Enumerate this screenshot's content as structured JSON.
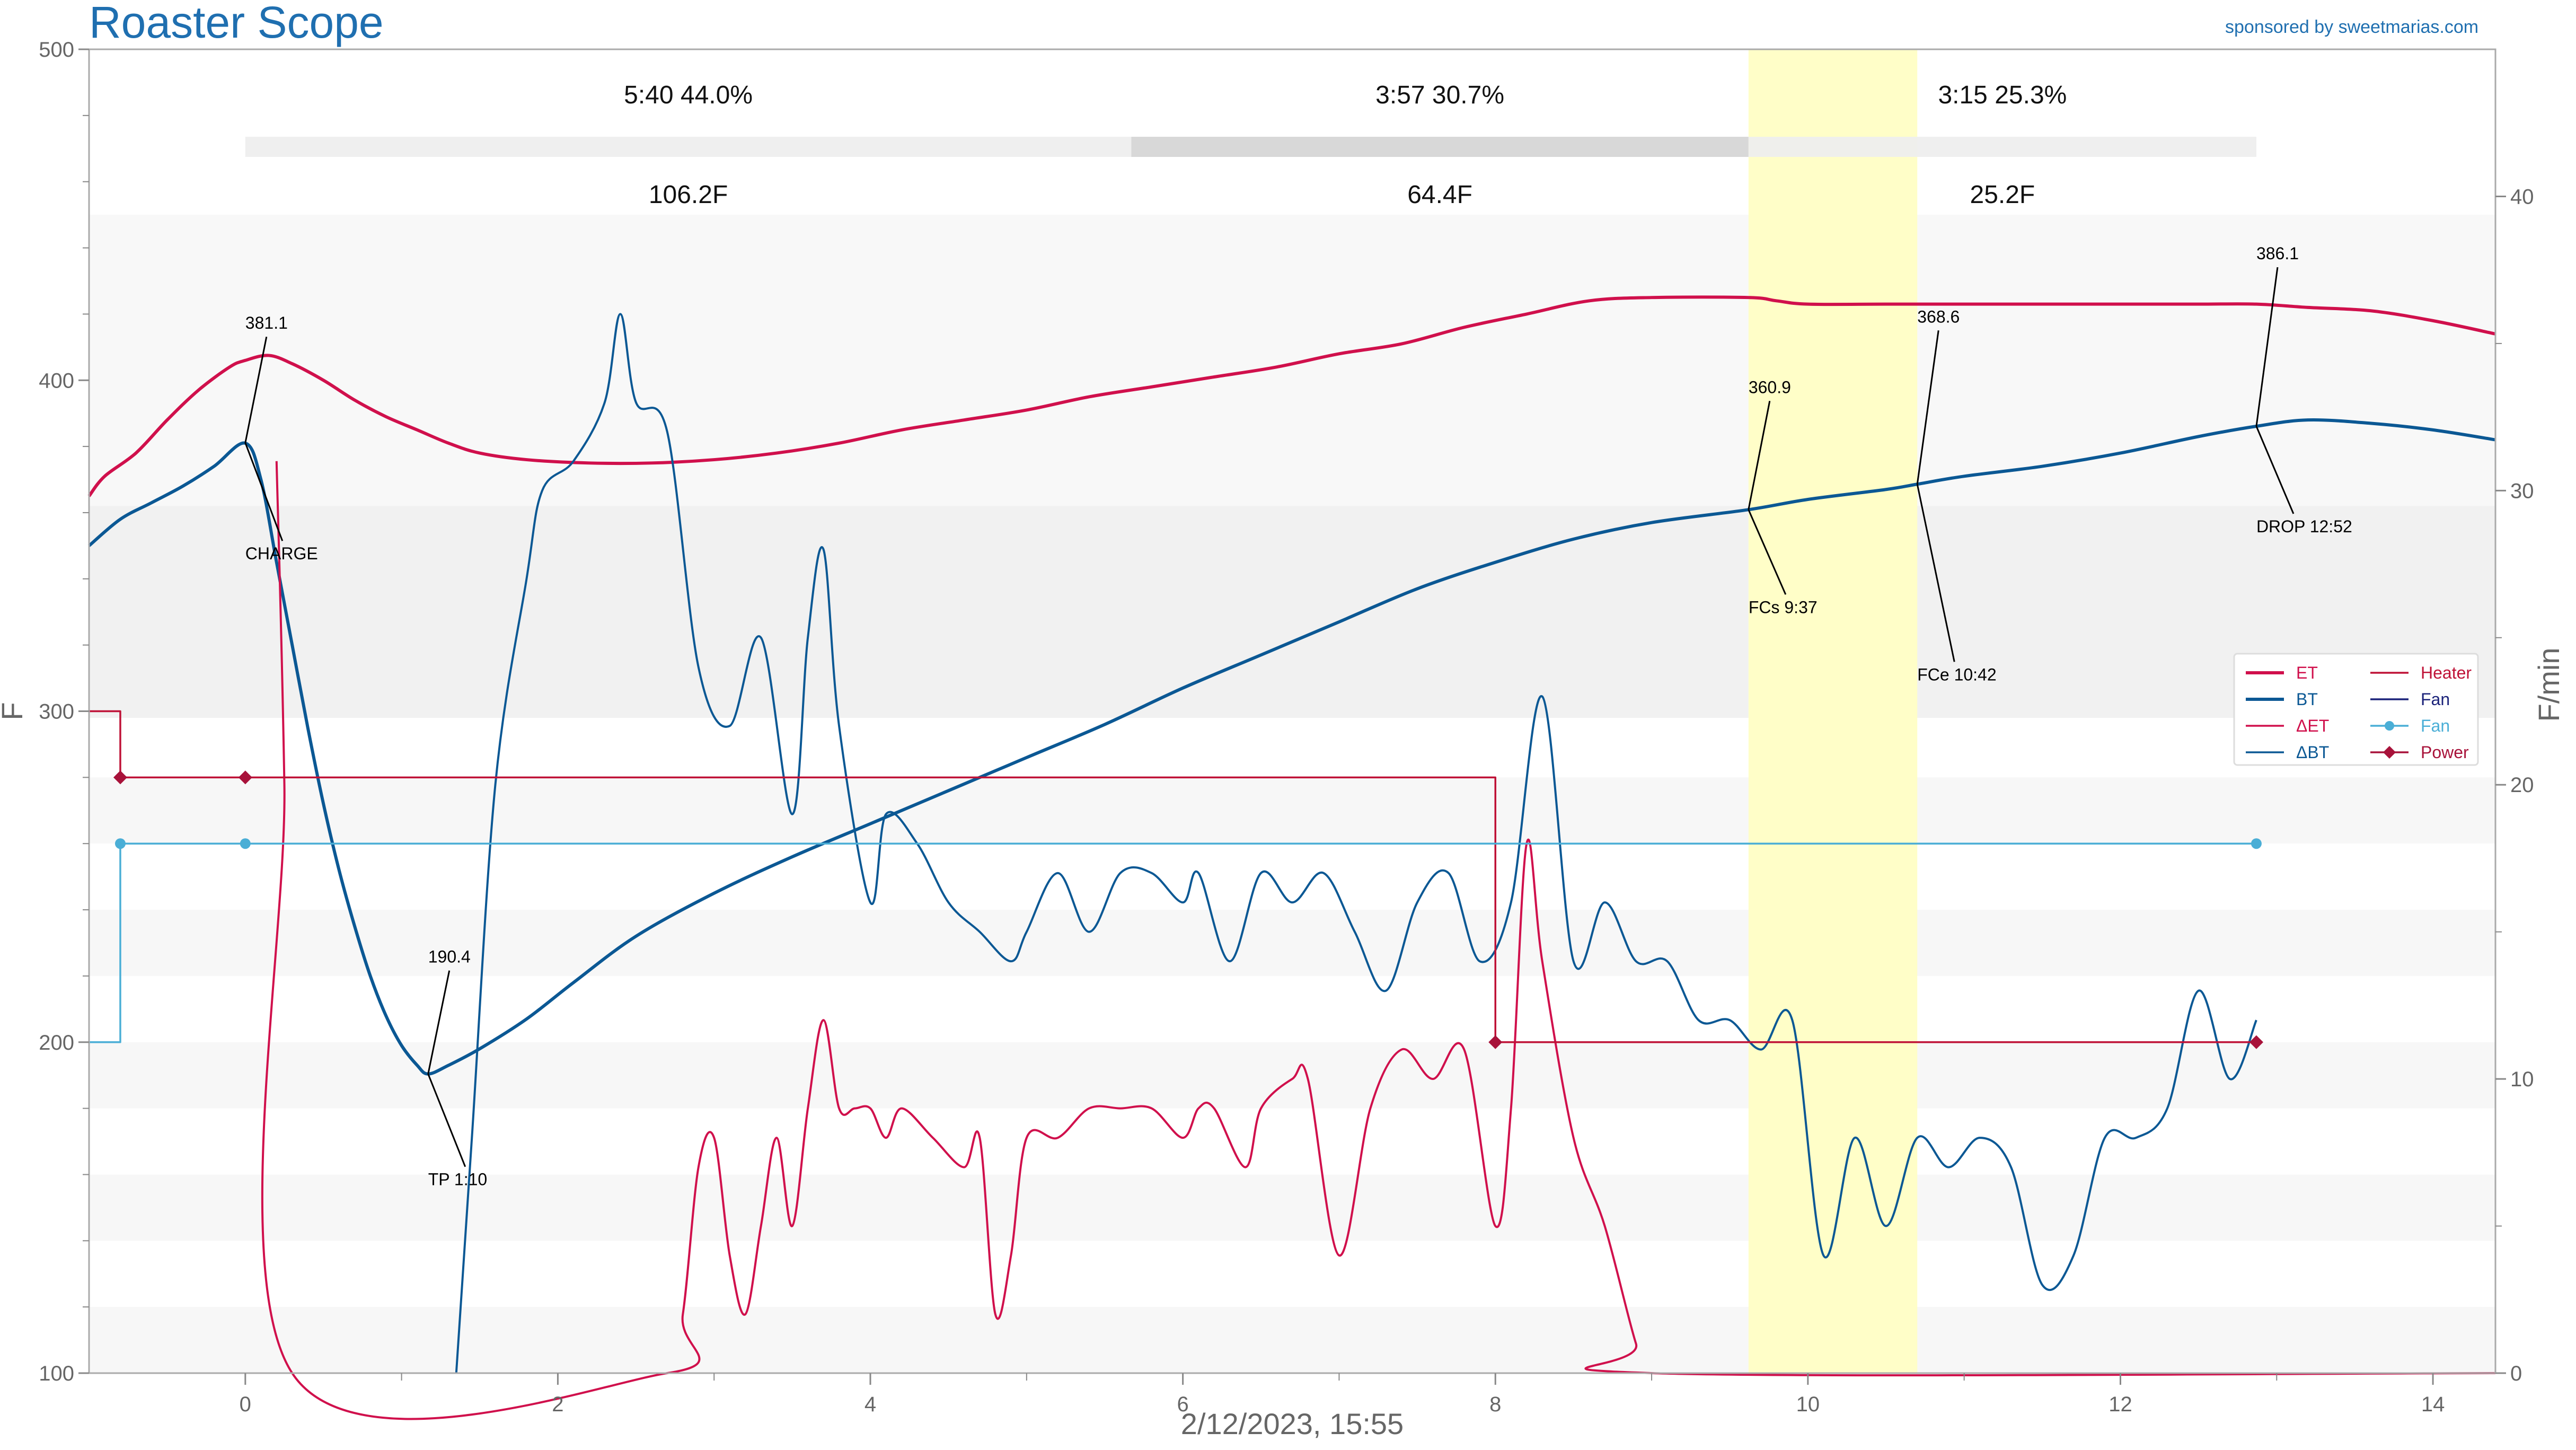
{
  "app": {
    "title": "Roaster Scope",
    "sponsor": "sponsored by sweetmarias.com"
  },
  "colors": {
    "et": "#d0104c",
    "bt": "#0b5894",
    "delta_et": "#d0104c",
    "delta_bt": "#0b5894",
    "heater": "#bf1237",
    "fan": "#4aaed6",
    "power": "#a8123a",
    "fc_band": "#fffec8"
  },
  "chart_data": {
    "type": "line",
    "xlabel": "2/12/2023, 15:55",
    "ylabel": "F",
    "ylabel_right": "F/min",
    "xlim": [
      -1.0,
      14.4
    ],
    "ylim": [
      100,
      500
    ],
    "ylim_right": [
      0,
      45
    ],
    "xticks": [
      0,
      2,
      4,
      6,
      8,
      10,
      12,
      14
    ],
    "yticks": [
      100,
      200,
      300,
      400,
      500
    ],
    "yticks_right": [
      0,
      10,
      20,
      30,
      40
    ],
    "first_crack_band": [
      9.62,
      10.7
    ],
    "phases": [
      {
        "time_pct": "5:40  44.0%",
        "delta": "106.2F",
        "start": 0.0,
        "end": 5.67
      },
      {
        "time_pct": "3:57  30.7%",
        "delta": "64.4F",
        "start": 5.67,
        "end": 9.62
      },
      {
        "time_pct": "3:15  25.3%",
        "delta": "25.2F",
        "start": 9.62,
        "end": 12.87
      }
    ],
    "annotations": [
      {
        "label": "CHARGE",
        "value": "381.1",
        "x": 0.0,
        "y": 381.1
      },
      {
        "label": "TP 1:10",
        "value": "190.4",
        "x": 1.17,
        "y": 190.4
      },
      {
        "label": "FCs 9:37",
        "value": "360.9",
        "x": 9.62,
        "y": 360.9
      },
      {
        "label": "FCe 10:42",
        "value": "368.6",
        "x": 10.7,
        "y": 368.6
      },
      {
        "label": "DROP 12:52",
        "value": "386.1",
        "x": 12.87,
        "y": 386.1
      }
    ],
    "legend": {
      "position": "right",
      "entries": [
        {
          "name": "ET",
          "key": "et",
          "style": "line-thick"
        },
        {
          "name": "BT",
          "key": "bt",
          "style": "line-thick"
        },
        {
          "name": "ΔET",
          "key": "delta_et",
          "style": "line"
        },
        {
          "name": "ΔBT",
          "key": "delta_bt",
          "style": "line"
        },
        {
          "name": "Heater",
          "key": "heater",
          "style": "line"
        },
        {
          "name": "Fan",
          "key": "fan_dark",
          "style": "line"
        },
        {
          "name": "Fan",
          "key": "fan",
          "style": "line-dot"
        },
        {
          "name": "Power",
          "key": "power",
          "style": "line-diamond"
        }
      ]
    },
    "series": [
      {
        "name": "ET",
        "axis": "left",
        "points": [
          [
            -1,
            365
          ],
          [
            -0.9,
            371
          ],
          [
            -0.7,
            378
          ],
          [
            -0.5,
            388
          ],
          [
            -0.3,
            397
          ],
          [
            -0.1,
            404
          ],
          [
            0,
            406
          ],
          [
            0.15,
            407.5
          ],
          [
            0.3,
            405
          ],
          [
            0.5,
            400
          ],
          [
            0.7,
            394
          ],
          [
            0.9,
            389
          ],
          [
            1.1,
            385
          ],
          [
            1.3,
            381
          ],
          [
            1.5,
            378
          ],
          [
            1.8,
            376
          ],
          [
            2.2,
            375
          ],
          [
            2.6,
            375
          ],
          [
            3.0,
            376
          ],
          [
            3.4,
            378
          ],
          [
            3.8,
            381
          ],
          [
            4.2,
            385
          ],
          [
            4.6,
            388
          ],
          [
            5.0,
            391
          ],
          [
            5.4,
            395
          ],
          [
            5.8,
            398
          ],
          [
            6.2,
            401
          ],
          [
            6.6,
            404
          ],
          [
            7.0,
            408
          ],
          [
            7.4,
            411
          ],
          [
            7.8,
            416
          ],
          [
            8.2,
            420
          ],
          [
            8.6,
            424
          ],
          [
            9.0,
            425
          ],
          [
            9.62,
            425
          ],
          [
            9.8,
            424
          ],
          [
            10.0,
            423
          ],
          [
            10.5,
            423
          ],
          [
            11.0,
            423
          ],
          [
            11.5,
            423
          ],
          [
            12.0,
            423
          ],
          [
            12.5,
            423
          ],
          [
            12.87,
            423
          ],
          [
            13.2,
            422
          ],
          [
            13.6,
            421
          ],
          [
            14.0,
            418
          ],
          [
            14.4,
            414
          ]
        ]
      },
      {
        "name": "BT",
        "axis": "left",
        "points": [
          [
            -1,
            350
          ],
          [
            -0.8,
            358
          ],
          [
            -0.6,
            363
          ],
          [
            -0.4,
            368
          ],
          [
            -0.2,
            374
          ],
          [
            0,
            381
          ],
          [
            0.1,
            370
          ],
          [
            0.2,
            345
          ],
          [
            0.3,
            320
          ],
          [
            0.4,
            295
          ],
          [
            0.5,
            272
          ],
          [
            0.6,
            252
          ],
          [
            0.7,
            235
          ],
          [
            0.8,
            220
          ],
          [
            0.9,
            208
          ],
          [
            1.0,
            199
          ],
          [
            1.1,
            193
          ],
          [
            1.17,
            190.4
          ],
          [
            1.3,
            193
          ],
          [
            1.5,
            198
          ],
          [
            1.8,
            207
          ],
          [
            2.1,
            218
          ],
          [
            2.5,
            232
          ],
          [
            3.0,
            245
          ],
          [
            3.5,
            256
          ],
          [
            4.0,
            266
          ],
          [
            4.5,
            276
          ],
          [
            5.0,
            286
          ],
          [
            5.5,
            296
          ],
          [
            6.0,
            307
          ],
          [
            6.5,
            317
          ],
          [
            7.0,
            327
          ],
          [
            7.5,
            337
          ],
          [
            8.0,
            345
          ],
          [
            8.5,
            352
          ],
          [
            9.0,
            357
          ],
          [
            9.62,
            360.9
          ],
          [
            10.0,
            364
          ],
          [
            10.5,
            367
          ],
          [
            10.7,
            368.6
          ],
          [
            11.0,
            371
          ],
          [
            11.5,
            374
          ],
          [
            12.0,
            378
          ],
          [
            12.5,
            383
          ],
          [
            12.87,
            386.1
          ],
          [
            13.2,
            388
          ],
          [
            13.6,
            387
          ],
          [
            14.0,
            385
          ],
          [
            14.4,
            382
          ]
        ]
      },
      {
        "name": "ΔET",
        "axis": "right",
        "points": [
          [
            0.2,
            31
          ],
          [
            0.25,
            20
          ],
          [
            0.3,
            0
          ],
          [
            2.7,
            0
          ],
          [
            2.8,
            2
          ],
          [
            2.9,
            7
          ],
          [
            3.0,
            8
          ],
          [
            3.1,
            4
          ],
          [
            3.2,
            2
          ],
          [
            3.3,
            5
          ],
          [
            3.4,
            8
          ],
          [
            3.5,
            5
          ],
          [
            3.6,
            9
          ],
          [
            3.7,
            12
          ],
          [
            3.8,
            9
          ],
          [
            3.9,
            9
          ],
          [
            4.0,
            9
          ],
          [
            4.1,
            8
          ],
          [
            4.2,
            9
          ],
          [
            4.4,
            8
          ],
          [
            4.6,
            7
          ],
          [
            4.7,
            8
          ],
          [
            4.8,
            2
          ],
          [
            4.9,
            4
          ],
          [
            5.0,
            8
          ],
          [
            5.2,
            8
          ],
          [
            5.4,
            9
          ],
          [
            5.6,
            9
          ],
          [
            5.8,
            9
          ],
          [
            6.0,
            8
          ],
          [
            6.1,
            9
          ],
          [
            6.2,
            9
          ],
          [
            6.4,
            7
          ],
          [
            6.5,
            9
          ],
          [
            6.7,
            10
          ],
          [
            6.8,
            10
          ],
          [
            7.0,
            4
          ],
          [
            7.2,
            9
          ],
          [
            7.4,
            11
          ],
          [
            7.6,
            10
          ],
          [
            7.8,
            11
          ],
          [
            8.0,
            5
          ],
          [
            8.1,
            9
          ],
          [
            8.2,
            18
          ],
          [
            8.3,
            14
          ],
          [
            8.5,
            8
          ],
          [
            8.7,
            5
          ],
          [
            8.9,
            1
          ],
          [
            9.0,
            0
          ],
          [
            14.4,
            0
          ]
        ]
      },
      {
        "name": "ΔBT",
        "axis": "right",
        "points": [
          [
            1.35,
            0
          ],
          [
            1.45,
            8
          ],
          [
            1.6,
            20
          ],
          [
            1.8,
            27
          ],
          [
            1.9,
            30
          ],
          [
            2.1,
            31
          ],
          [
            2.3,
            33
          ],
          [
            2.4,
            36
          ],
          [
            2.5,
            33
          ],
          [
            2.7,
            32
          ],
          [
            2.9,
            24
          ],
          [
            3.1,
            22
          ],
          [
            3.3,
            25
          ],
          [
            3.5,
            19
          ],
          [
            3.6,
            25
          ],
          [
            3.7,
            28
          ],
          [
            3.8,
            22
          ],
          [
            4.0,
            16
          ],
          [
            4.1,
            19
          ],
          [
            4.3,
            18
          ],
          [
            4.5,
            16
          ],
          [
            4.7,
            15
          ],
          [
            4.9,
            14
          ],
          [
            5.0,
            15
          ],
          [
            5.2,
            17
          ],
          [
            5.4,
            15
          ],
          [
            5.6,
            17
          ],
          [
            5.8,
            17
          ],
          [
            6.0,
            16
          ],
          [
            6.1,
            17
          ],
          [
            6.3,
            14
          ],
          [
            6.5,
            17
          ],
          [
            6.7,
            16
          ],
          [
            6.9,
            17
          ],
          [
            7.1,
            15
          ],
          [
            7.3,
            13
          ],
          [
            7.5,
            16
          ],
          [
            7.7,
            17
          ],
          [
            7.9,
            14
          ],
          [
            8.1,
            16
          ],
          [
            8.3,
            23
          ],
          [
            8.5,
            14
          ],
          [
            8.7,
            16
          ],
          [
            8.9,
            14
          ],
          [
            9.1,
            14
          ],
          [
            9.3,
            12
          ],
          [
            9.5,
            12
          ],
          [
            9.7,
            11
          ],
          [
            9.9,
            12
          ],
          [
            10.1,
            4
          ],
          [
            10.3,
            8
          ],
          [
            10.5,
            5
          ],
          [
            10.7,
            8
          ],
          [
            10.9,
            7
          ],
          [
            11.1,
            8
          ],
          [
            11.3,
            7
          ],
          [
            11.5,
            3
          ],
          [
            11.7,
            4
          ],
          [
            11.9,
            8
          ],
          [
            12.1,
            8
          ],
          [
            12.3,
            9
          ],
          [
            12.5,
            13
          ],
          [
            12.7,
            10
          ],
          [
            12.87,
            12
          ]
        ]
      },
      {
        "name": "Heater",
        "axis": "left",
        "points": [
          [
            -1,
            300
          ],
          [
            -0.8,
            300
          ],
          [
            -0.8,
            280
          ],
          [
            8.0,
            280
          ],
          [
            8.0,
            200
          ],
          [
            12.87,
            200
          ]
        ]
      },
      {
        "name": "Fan",
        "axis": "left",
        "points": [
          [
            -1,
            200
          ],
          [
            -0.8,
            200
          ],
          [
            -0.8,
            260
          ],
          [
            12.87,
            260
          ]
        ]
      },
      {
        "name": "Power",
        "axis": "left",
        "points": [
          [
            -0.8,
            280
          ],
          [
            0.0,
            280
          ],
          [
            8.0,
            200
          ],
          [
            12.87,
            200
          ]
        ]
      }
    ]
  }
}
